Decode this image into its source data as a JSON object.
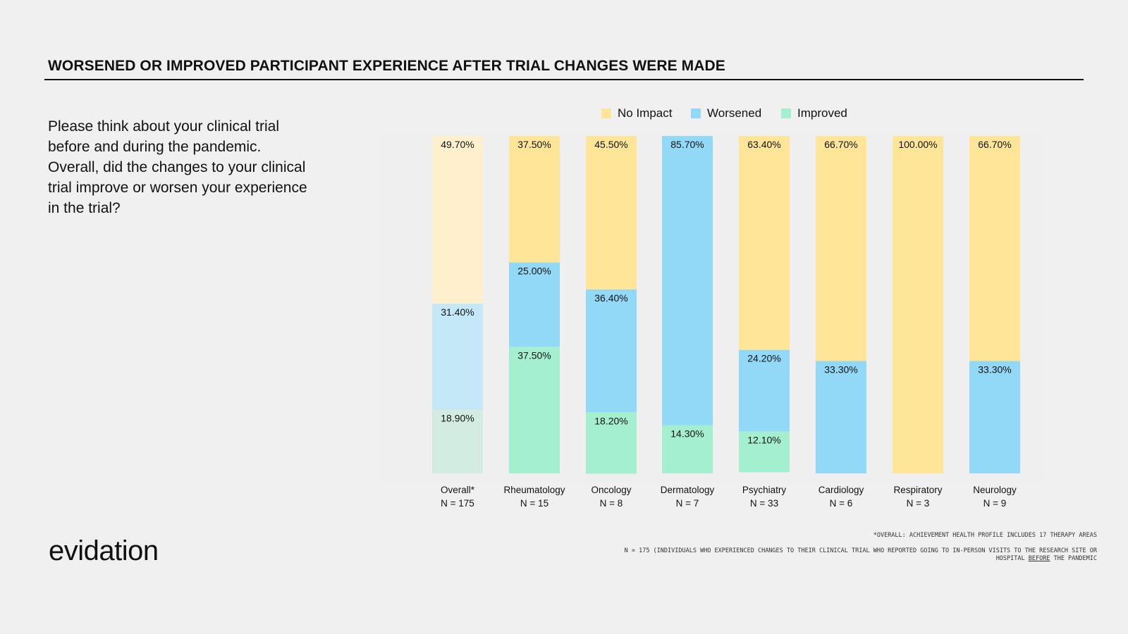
{
  "title": "WORSENED OR IMPROVED PARTICIPANT EXPERIENCE AFTER TRIAL CHANGES WERE MADE",
  "question": "Please think about your clinical trial before and during the pandemic. Overall, did the changes to your clinical trial improve or worsen your experience in the trial?",
  "logo": "evidation",
  "footnotes": {
    "line1": "*OVERALL: ACHIEVEMENT HEALTH PROFILE INCLUDES 17 THERAPY AREAS",
    "line2_before": "N = 175 (INDIVIDUALS WHO EXPERIENCED CHANGES TO THEIR CLINICAL TRIAL WHO REPORTED GOING TO IN-PERSON VISITS TO THE RESEARCH SITE OR HOSPITAL ",
    "line2_underlined": "BEFORE",
    "line2_after": " THE PANDEMIC"
  },
  "colors": {
    "no_impact": "#fee598",
    "worsened": "#92d9f8",
    "improved": "#a4efd0",
    "no_impact_light": "#fef0cc",
    "worsened_light": "#c4e8f8",
    "improved_light": "#d3ece2"
  },
  "chart_data": {
    "type": "bar",
    "stacked": true,
    "normalized_percent": true,
    "legend_position": "top",
    "categories": [
      "Overall*",
      "Rheumatology",
      "Oncology",
      "Dermatology",
      "Psychiatry",
      "Cardiology",
      "Respiratory",
      "Neurology"
    ],
    "sample_sizes": [
      "N = 175",
      "N = 15",
      "N = 8",
      "N = 7",
      "N = 33",
      "N = 6",
      "N = 3",
      "N = 9"
    ],
    "series": [
      {
        "name": "No Impact",
        "values": [
          49.7,
          37.5,
          45.5,
          0,
          63.4,
          66.7,
          100.0,
          66.7
        ],
        "labels": [
          "49.70%",
          "37.50%",
          "45.50%",
          "",
          "63.40%",
          "66.70%",
          "100.00%",
          "66.70%"
        ]
      },
      {
        "name": "Worsened",
        "values": [
          31.4,
          25.0,
          36.4,
          85.7,
          24.2,
          33.3,
          0,
          33.3
        ],
        "labels": [
          "31.40%",
          "25.00%",
          "36.40%",
          "85.70%",
          "24.20%",
          "33.30%",
          "",
          "33.30%"
        ]
      },
      {
        "name": "Improved",
        "values": [
          18.9,
          37.5,
          18.2,
          14.3,
          12.1,
          0,
          0,
          0
        ],
        "labels": [
          "18.90%",
          "37.50%",
          "18.20%",
          "14.30%",
          "12.10%",
          "",
          "",
          ""
        ]
      }
    ],
    "ylim": [
      0,
      100
    ],
    "grid": false
  }
}
